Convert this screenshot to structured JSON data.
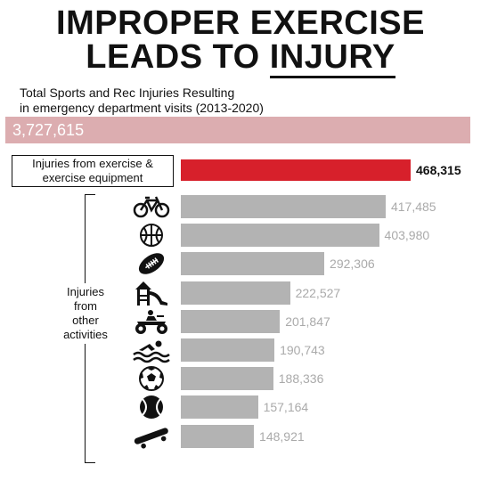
{
  "header": {
    "title_line1": "IMPROPER EXERCISE",
    "title_line2_prefix": "LEADS TO ",
    "title_line2_underlined": "INJURY",
    "subtitle_line1": "Total Sports and Rec Injuries Resulting",
    "subtitle_line2": "in emergency department visits (2013-2020)"
  },
  "total": {
    "value": "3,727,615"
  },
  "highlight": {
    "label_line1": "Injuries from exercise &",
    "label_line2": "exercise equipment",
    "value_text": "468,315"
  },
  "other_label": {
    "line1": "Injuries",
    "line2": "from",
    "line3": "other",
    "line4": "activities"
  },
  "colors": {
    "total_bar": "#dcadb0",
    "highlight_bar": "#d7202b",
    "other_bars": "#b3b3b3",
    "value_text": "#aaaaaa"
  },
  "chart_data": {
    "type": "bar",
    "orientation": "horizontal",
    "title": "IMPROPER EXERCISE LEADS TO INJURY",
    "subtitle": "Total Sports and Rec Injuries Resulting in emergency department visits (2013-2020)",
    "total": 3727615,
    "highlight": {
      "category": "Injuries from exercise & exercise equipment",
      "value": 468315
    },
    "values": [
      417485,
      403980,
      292306,
      222527,
      201847,
      190743,
      188336,
      157164,
      148921
    ],
    "labels": [
      "417,485",
      "403,980",
      "292,306",
      "222,527",
      "201,847",
      "190,743",
      "188,336",
      "157,164",
      "148,921"
    ],
    "icons": [
      "bicycle-icon",
      "basketball-icon",
      "football-icon",
      "playground-icon",
      "atv-icon",
      "swimming-icon",
      "soccer-ball-icon",
      "tennis-ball-icon",
      "skateboard-icon"
    ],
    "xlim": [
      0,
      468315
    ],
    "grid": false,
    "legend": "none"
  }
}
